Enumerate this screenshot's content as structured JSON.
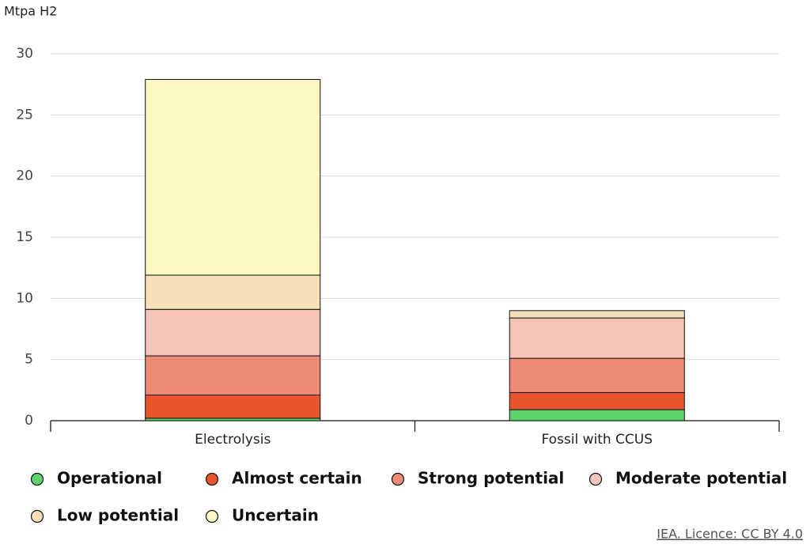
{
  "chart_data": {
    "type": "stacked_bar",
    "y_label": "Mtpa H2",
    "source": "IEA. Licence: CC BY 4.0",
    "categories": [
      "Electrolysis",
      "Fossil with CCUS"
    ],
    "series": [
      {
        "name": "Operational",
        "color": "#5cd46a",
        "values": [
          0.2,
          0.9
        ]
      },
      {
        "name": "Almost certain",
        "color": "#e8542b",
        "values": [
          1.9,
          1.4
        ]
      },
      {
        "name": "Strong potential",
        "color": "#ed8b75",
        "values": [
          3.2,
          2.8
        ]
      },
      {
        "name": "Moderate potential",
        "color": "#f4c4b9",
        "values": [
          3.8,
          3.3
        ]
      },
      {
        "name": "Low potential",
        "color": "#f7e0b7",
        "values": [
          2.8,
          0.6
        ]
      },
      {
        "name": "Uncertain",
        "color": "#fcf8c2",
        "values": [
          16.0,
          0
        ]
      }
    ],
    "ylim": [
      0,
      30
    ],
    "yticks": [
      0,
      5,
      10,
      15,
      20,
      25,
      30
    ],
    "grid": true
  }
}
